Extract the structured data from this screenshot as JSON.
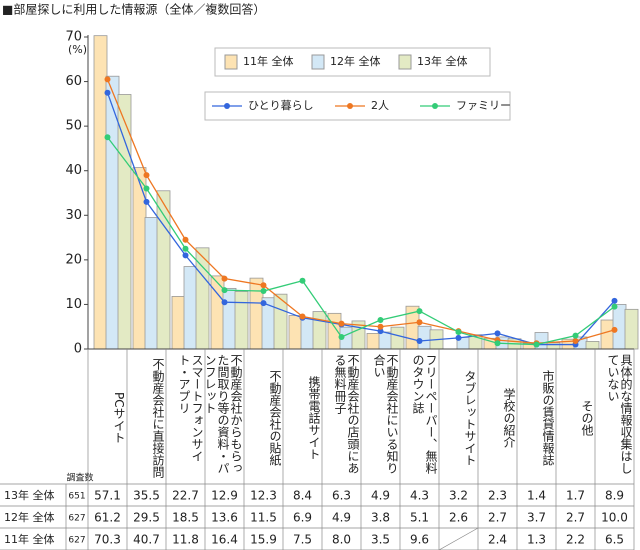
{
  "chart_data": {
    "type": "bar",
    "title": "■部屋探しに利用した情報源（全体／複数回答）",
    "y_unit": "(%)",
    "table_header": "調査数",
    "categories": [
      "PCサイト",
      "不動産会社に直接訪問",
      "スマートフォンサイト・アプリ",
      "不動産会社からもらった間取り等の資料・パンフレット",
      "不動産会社の貼紙",
      "携帯電話サイト",
      "不動産会社の店頭にある無料冊子",
      "不動産会社にいる知り合い",
      "フリーペーパー、無料のタウン誌",
      "タブレットサイト",
      "学校の紹介",
      "市販の賃貸情報誌",
      "その他",
      "具体的な情報収集はしていない"
    ],
    "ylim": [
      0,
      70
    ],
    "yticks": [
      0,
      10,
      20,
      30,
      40,
      50,
      60,
      70
    ],
    "grid": false,
    "series": [
      {
        "name": "11年 全体",
        "type": "bar",
        "color": "#fde3b3",
        "n": 627,
        "values": [
          70.3,
          40.7,
          11.8,
          16.4,
          15.9,
          7.5,
          8.0,
          3.5,
          9.6,
          null,
          2.4,
          1.3,
          2.2,
          6.5
        ],
        "value_labels": [
          "70.3",
          "40.7",
          "11.8",
          "16.4",
          "15.9",
          "7.5",
          "8.0",
          "3.5",
          "9.6",
          null,
          "2.4",
          "1.3",
          "2.2",
          "6.5"
        ]
      },
      {
        "name": "12年 全体",
        "type": "bar",
        "color": "#d3e8f6",
        "n": 627,
        "values": [
          61.2,
          29.5,
          18.5,
          13.6,
          11.5,
          6.9,
          4.9,
          3.8,
          5.1,
          2.6,
          2.7,
          3.7,
          2.7,
          10.0
        ],
        "value_labels": [
          "61.2",
          "29.5",
          "18.5",
          "13.6",
          "11.5",
          "6.9",
          "4.9",
          "3.8",
          "5.1",
          "2.6",
          "2.7",
          "3.7",
          "2.7",
          "10.0"
        ]
      },
      {
        "name": "13年 全体",
        "type": "bar",
        "color": "#e3eac4",
        "n": 651,
        "values": [
          57.1,
          35.5,
          22.7,
          12.9,
          12.3,
          8.4,
          6.3,
          4.9,
          4.3,
          3.2,
          2.3,
          1.4,
          1.7,
          8.9
        ],
        "value_labels": [
          "57.1",
          "35.5",
          "22.7",
          "12.9",
          "12.3",
          "8.4",
          "6.3",
          "4.9",
          "4.3",
          "3.2",
          "2.3",
          "1.4",
          "1.7",
          "8.9"
        ]
      },
      {
        "name": "ひとり暮らし",
        "type": "line",
        "color": "#3366dd",
        "values": [
          57.5,
          33,
          21,
          10.5,
          10.3,
          7,
          5.5,
          4,
          1.8,
          2.5,
          3.5,
          1,
          1,
          10.8
        ]
      },
      {
        "name": "2人",
        "type": "line",
        "color": "#ee7722",
        "values": [
          60.5,
          39,
          24.5,
          15.8,
          14.3,
          7.3,
          5.7,
          5,
          6,
          4,
          2,
          1.3,
          1.8,
          4.3
        ]
      },
      {
        "name": "ファミリー",
        "type": "line",
        "color": "#33cc77",
        "values": [
          47.5,
          36,
          22.5,
          13.2,
          13,
          15.3,
          2.7,
          6.5,
          8.5,
          3.8,
          1.3,
          1,
          3,
          9.5
        ]
      }
    ]
  }
}
